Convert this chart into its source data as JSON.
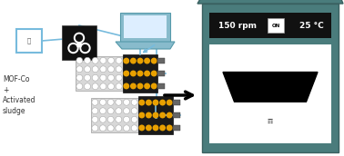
{
  "bg_color": "#ffffff",
  "incubator_color": "#4a7c7c",
  "display_bg": "#111111",
  "display_text_color": "#ffffff",
  "display_150rpm": "150 rpm",
  "display_25c": "25 °C",
  "display_on": "ON",
  "inner_chamber_color": "#ffffff",
  "arrow_color": "#111111",
  "line_color": "#77bbdd",
  "dot_color": "#e8a000",
  "label_text": "MOF-Co\n+\nActivated\nsludge",
  "text_color": "#333333",
  "sensor_bar_color": "#1a1a1a",
  "plate_bg_color": "#d8d8d8",
  "well_color": "#ffffff",
  "well_edge_color": "#aaaaaa",
  "ctrl_box_color": "#111111",
  "laptop_body_color": "#88bbcc",
  "laptop_screen_color": "#ddeeff",
  "sensor_box_edge": "#77bbdd",
  "connector_color": "#666666"
}
